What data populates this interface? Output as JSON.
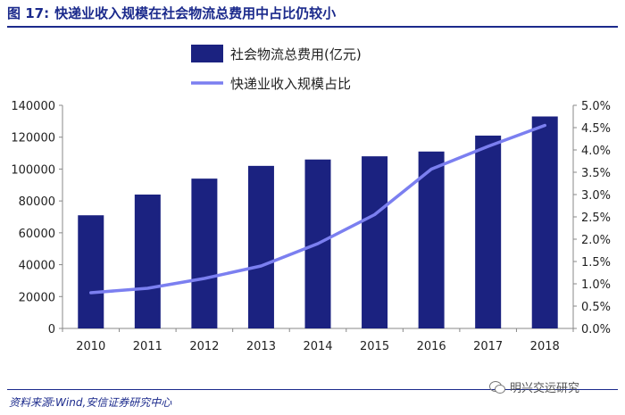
{
  "figure": {
    "number": "图 17:",
    "title": "快递业收入规模在社会物流总费用中占比仍较小"
  },
  "source": "资料来源:Wind,安信证券研究中心",
  "watermark": "明兴交运研究",
  "colors": {
    "bar": "#1b2280",
    "line": "#7b7ff0",
    "title": "#1b2a8c"
  },
  "chart_data": {
    "type": "bar",
    "categories": [
      "2010",
      "2011",
      "2012",
      "2013",
      "2014",
      "2015",
      "2016",
      "2017",
      "2018"
    ],
    "series": [
      {
        "name": "社会物流总费用(亿元)",
        "type": "bar",
        "axis": "left",
        "values": [
          71000,
          84000,
          94000,
          102000,
          106000,
          108000,
          111000,
          121000,
          133000
        ]
      },
      {
        "name": "快递业收入规模占比",
        "type": "line",
        "axis": "right",
        "values": [
          0.008,
          0.009,
          0.0112,
          0.014,
          0.019,
          0.0255,
          0.0357,
          0.0408,
          0.0455
        ]
      }
    ],
    "y_left": {
      "min": 0,
      "max": 140000,
      "ticks": [
        "0",
        "20000",
        "40000",
        "60000",
        "80000",
        "100000",
        "120000",
        "140000"
      ]
    },
    "y_right": {
      "min": 0,
      "max": 0.05,
      "ticks": [
        "0.0%",
        "0.5%",
        "1.0%",
        "1.5%",
        "2.0%",
        "2.5%",
        "3.0%",
        "3.5%",
        "4.0%",
        "4.5%",
        "5.0%"
      ]
    },
    "legend": {
      "position": "top",
      "entries": [
        "社会物流总费用(亿元)",
        "快递业收入规模占比"
      ]
    },
    "grid": false
  }
}
